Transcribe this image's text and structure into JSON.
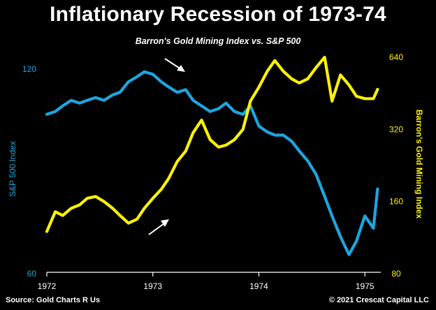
{
  "title": "Inflationary Recession of 1973-74",
  "footer": {
    "source": "Source: Gold Charts R Us",
    "copyright": "© 2021 Crescat Capital LLC"
  },
  "colors": {
    "sp500": "#1ca6e0",
    "gold": "#fff200",
    "background": "#000000",
    "text": "#ffffff"
  },
  "chart_data": {
    "type": "line",
    "title": "Barron's Gold Mining Index vs. S&P 500",
    "xlim": [
      1972.0,
      1975.15
    ],
    "x_ticks": [
      "1972",
      "1973",
      "1974",
      "1975"
    ],
    "y_left": {
      "label": "S&P 500 Index",
      "scale": "log",
      "range": [
        60,
        125
      ],
      "ticks": [
        "60",
        "120"
      ]
    },
    "y_right": {
      "label": "Barron's Gold Mining Index",
      "scale": "log",
      "range": [
        80,
        640
      ],
      "ticks": [
        "80",
        "160",
        "320",
        "640"
      ]
    },
    "series": [
      {
        "name": "S&P 500 Index",
        "axis": "left",
        "color": "#1ca6e0",
        "x": [
          1972.0,
          1972.08,
          1972.15,
          1972.23,
          1972.31,
          1972.38,
          1972.46,
          1972.54,
          1972.62,
          1972.69,
          1972.77,
          1972.85,
          1972.92,
          1973.0,
          1973.08,
          1973.15,
          1973.23,
          1973.31,
          1973.38,
          1973.46,
          1973.54,
          1973.62,
          1973.69,
          1973.77,
          1973.85,
          1973.92,
          1974.0,
          1974.08,
          1974.15,
          1974.23,
          1974.31,
          1974.38,
          1974.46,
          1974.54,
          1974.62,
          1974.69,
          1974.77,
          1974.85,
          1974.92,
          1975.0,
          1975.08,
          1975.12
        ],
        "values": [
          103,
          104,
          106,
          108,
          107,
          108,
          109,
          108,
          110,
          111,
          115,
          117,
          119,
          118,
          115,
          113,
          111,
          112,
          108,
          106,
          104,
          105,
          107,
          104,
          103,
          106,
          99,
          97,
          96,
          96,
          94,
          91,
          88,
          84,
          78,
          73,
          68,
          64,
          67,
          73,
          70,
          80
        ]
      },
      {
        "name": "Barron's Gold Mining Index",
        "axis": "right",
        "color": "#fff200",
        "x": [
          1972.0,
          1972.08,
          1972.15,
          1972.23,
          1972.31,
          1972.38,
          1972.46,
          1972.54,
          1972.62,
          1972.69,
          1972.77,
          1972.85,
          1972.92,
          1973.0,
          1973.08,
          1973.15,
          1973.23,
          1973.31,
          1973.38,
          1973.46,
          1973.54,
          1973.62,
          1973.69,
          1973.77,
          1973.85,
          1973.92,
          1974.0,
          1974.08,
          1974.15,
          1974.23,
          1974.31,
          1974.38,
          1974.46,
          1974.54,
          1974.62,
          1974.69,
          1974.77,
          1974.85,
          1974.92,
          1975.0,
          1975.08,
          1975.12
        ],
        "values": [
          120,
          145,
          140,
          150,
          155,
          165,
          168,
          160,
          150,
          140,
          130,
          135,
          150,
          165,
          180,
          200,
          235,
          260,
          310,
          350,
          290,
          270,
          275,
          290,
          320,
          420,
          480,
          560,
          620,
          560,
          520,
          500,
          520,
          580,
          640,
          420,
          540,
          490,
          440,
          430,
          430,
          470
        ]
      }
    ],
    "grid": false,
    "legend": "none"
  }
}
